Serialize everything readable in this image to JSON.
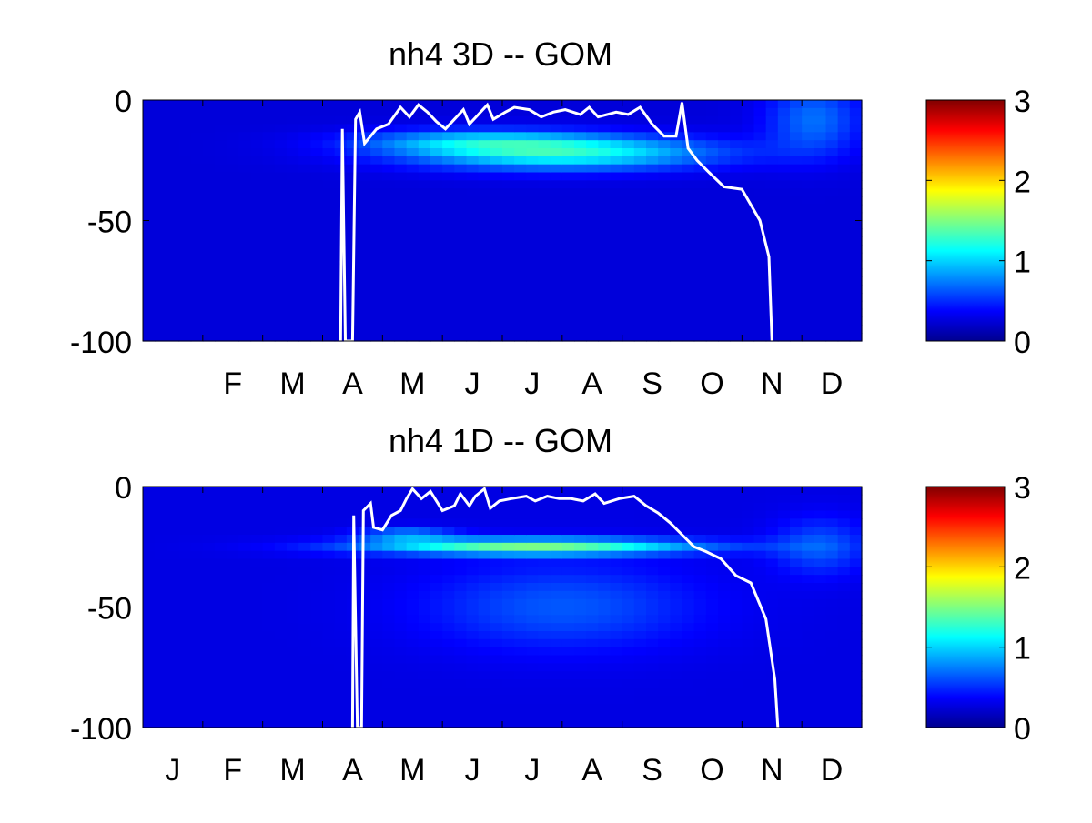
{
  "colors": {
    "line": "#ffffff",
    "background": "#ffffff",
    "colormap": [
      "#00008f",
      "#0000ff",
      "#0080ff",
      "#00ffff",
      "#80ff80",
      "#ffff00",
      "#ff8000",
      "#ff0000",
      "#800000"
    ]
  },
  "chart_data": [
    {
      "type": "heatmap",
      "title": "nh4 3D   -- GOM",
      "x_tick_labels": [
        "F",
        "M",
        "A",
        "M",
        "J",
        "J",
        "A",
        "S",
        "O",
        "N",
        "D"
      ],
      "y_ticks": [
        0,
        -50,
        -100
      ],
      "y_tick_labels": [
        "0",
        "-50",
        "-100"
      ],
      "ylim": [
        -100,
        0
      ],
      "xlim": [
        0,
        12
      ],
      "colorbar": {
        "range": [
          0,
          3
        ],
        "ticks": [
          0,
          1,
          2,
          3
        ],
        "tick_labels": [
          "0",
          "1",
          "2",
          "3"
        ]
      },
      "field": {
        "level": 0.25,
        "features": [
          {
            "x": 7.0,
            "y": -22,
            "sx": 2.6,
            "sy": 7,
            "amp": 0.95
          },
          {
            "x": 5.5,
            "y": -17,
            "sx": 2.0,
            "sy": 5,
            "amp": 0.5
          },
          {
            "x": 11.2,
            "y": -8,
            "sx": 0.8,
            "sy": 15,
            "amp": 0.45
          }
        ]
      },
      "mixed_layer_line": [
        [
          3.3,
          -100
        ],
        [
          3.33,
          -12
        ],
        [
          3.38,
          -100
        ],
        [
          3.5,
          -100
        ],
        [
          3.55,
          -8
        ],
        [
          3.62,
          -5
        ],
        [
          3.7,
          -18
        ],
        [
          3.9,
          -12
        ],
        [
          4.1,
          -10
        ],
        [
          4.3,
          -3
        ],
        [
          4.45,
          -7
        ],
        [
          4.6,
          -2
        ],
        [
          4.75,
          -5
        ],
        [
          4.9,
          -9
        ],
        [
          5.05,
          -12
        ],
        [
          5.2,
          -8
        ],
        [
          5.35,
          -4
        ],
        [
          5.45,
          -10
        ],
        [
          5.6,
          -6
        ],
        [
          5.75,
          -2
        ],
        [
          5.85,
          -8
        ],
        [
          6.05,
          -5
        ],
        [
          6.2,
          -3
        ],
        [
          6.45,
          -4
        ],
        [
          6.65,
          -7
        ],
        [
          6.85,
          -5
        ],
        [
          7.05,
          -4
        ],
        [
          7.3,
          -6
        ],
        [
          7.45,
          -3
        ],
        [
          7.6,
          -7
        ],
        [
          7.9,
          -5
        ],
        [
          8.1,
          -6
        ],
        [
          8.3,
          -3
        ],
        [
          8.5,
          -10
        ],
        [
          8.7,
          -15
        ],
        [
          8.9,
          -15
        ],
        [
          9.0,
          -1
        ],
        [
          9.1,
          -20
        ],
        [
          9.25,
          -25
        ],
        [
          9.45,
          -30
        ],
        [
          9.7,
          -36
        ],
        [
          10.0,
          -37
        ],
        [
          10.3,
          -50
        ],
        [
          10.45,
          -65
        ],
        [
          10.5,
          -100
        ]
      ]
    },
    {
      "type": "heatmap",
      "title": "nh4 1D   -- GOM",
      "x_tick_labels": [
        "J",
        "F",
        "M",
        "A",
        "M",
        "J",
        "J",
        "A",
        "S",
        "O",
        "N",
        "D"
      ],
      "y_ticks": [
        0,
        -50,
        -100
      ],
      "y_tick_labels": [
        "0",
        "-50",
        "-100"
      ],
      "ylim": [
        -100,
        0
      ],
      "xlim": [
        0,
        12
      ],
      "colorbar": {
        "range": [
          0,
          3
        ],
        "ticks": [
          0,
          1,
          2,
          3
        ],
        "tick_labels": [
          "0",
          "1",
          "2",
          "3"
        ]
      },
      "field": {
        "level": 0.28,
        "features": [
          {
            "x": 6.5,
            "y": -25,
            "sx": 2.8,
            "sy": 3.5,
            "amp": 1.15
          },
          {
            "x": 4.4,
            "y": -20,
            "sx": 0.8,
            "sy": 3,
            "amp": 0.5
          },
          {
            "x": 7.0,
            "y": -50,
            "sx": 2.3,
            "sy": 18,
            "amp": 0.35
          },
          {
            "x": 11.3,
            "y": -25,
            "sx": 0.8,
            "sy": 12,
            "amp": 0.35
          }
        ]
      },
      "mixed_layer_line": [
        [
          3.5,
          -100
        ],
        [
          3.52,
          -12
        ],
        [
          3.58,
          -100
        ],
        [
          3.65,
          -100
        ],
        [
          3.68,
          -10
        ],
        [
          3.8,
          -7
        ],
        [
          3.85,
          -17
        ],
        [
          4.0,
          -18
        ],
        [
          4.15,
          -12
        ],
        [
          4.3,
          -10
        ],
        [
          4.4,
          -5
        ],
        [
          4.5,
          -1
        ],
        [
          4.65,
          -5
        ],
        [
          4.8,
          -2
        ],
        [
          4.9,
          -6
        ],
        [
          5.0,
          -10
        ],
        [
          5.2,
          -8
        ],
        [
          5.3,
          -3
        ],
        [
          5.45,
          -8
        ],
        [
          5.55,
          -4
        ],
        [
          5.7,
          -1
        ],
        [
          5.8,
          -9
        ],
        [
          5.95,
          -6
        ],
        [
          6.15,
          -5
        ],
        [
          6.4,
          -4
        ],
        [
          6.55,
          -6
        ],
        [
          6.75,
          -4
        ],
        [
          6.95,
          -5
        ],
        [
          7.15,
          -5
        ],
        [
          7.35,
          -6
        ],
        [
          7.55,
          -3
        ],
        [
          7.7,
          -7
        ],
        [
          7.95,
          -5
        ],
        [
          8.2,
          -4
        ],
        [
          8.4,
          -8
        ],
        [
          8.6,
          -11
        ],
        [
          8.8,
          -15
        ],
        [
          9.0,
          -20
        ],
        [
          9.2,
          -25
        ],
        [
          9.4,
          -27
        ],
        [
          9.65,
          -30
        ],
        [
          9.9,
          -37
        ],
        [
          10.15,
          -40
        ],
        [
          10.4,
          -55
        ],
        [
          10.55,
          -80
        ],
        [
          10.6,
          -100
        ]
      ]
    }
  ]
}
